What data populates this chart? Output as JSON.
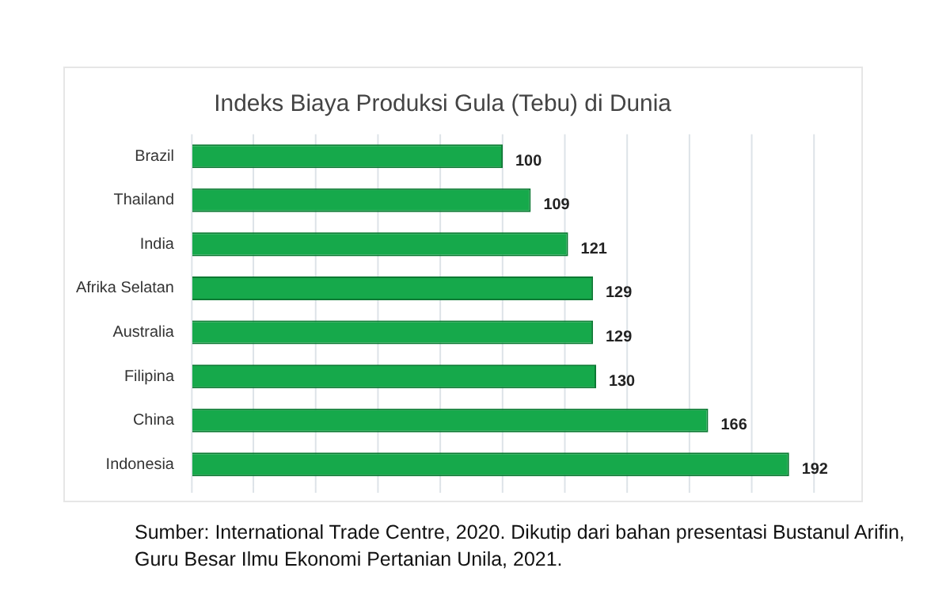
{
  "chart_data": {
    "type": "bar",
    "orientation": "horizontal",
    "title": "Indeks Biaya Produksi Gula (Tebu) di Dunia",
    "categories": [
      "Brazil",
      "Thailand",
      "India",
      "Afrika Selatan",
      "Australia",
      "Filipina",
      "China",
      "Indonesia"
    ],
    "values": [
      100,
      109,
      121,
      129,
      129,
      130,
      166,
      192
    ],
    "color": "#16a94b",
    "xlim": [
      0,
      200
    ],
    "xticks": [
      {
        "value": 0,
        "label": null
      },
      {
        "value": 20,
        "label": null
      },
      {
        "value": 40,
        "label": null
      },
      {
        "value": 60,
        "label": null
      },
      {
        "value": 80,
        "label": null
      },
      {
        "value": 100,
        "label": null
      },
      {
        "value": 120,
        "label": null
      },
      {
        "value": 140,
        "label": null
      },
      {
        "value": 160,
        "label": null
      },
      {
        "value": 180,
        "label": null
      },
      {
        "value": 200,
        "label": null
      }
    ],
    "grid": "x",
    "tick_labels": "y",
    "data_labels": true,
    "legend": false,
    "annotations": [
      "Sumber: International Trade Centre, 2020. Dikutip dari bahan presentasi Bustanul Arifin, Guru Besar Ilmu Ekonomi Pertanian Unila, 2021."
    ]
  }
}
